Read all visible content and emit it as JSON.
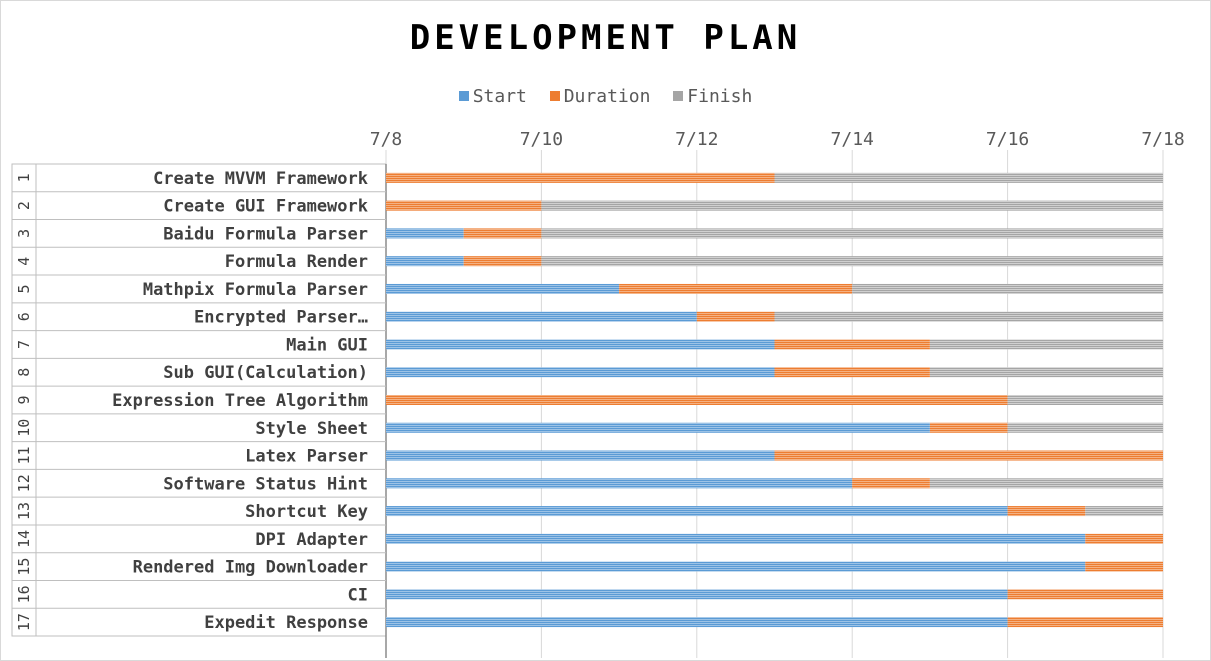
{
  "chart_data": {
    "type": "bar",
    "stacked": true,
    "orientation": "horizontal",
    "title": "DEVELOPMENT PLAN",
    "legend_position": "top",
    "series": [
      {
        "name": "Start",
        "color": "#5b9bd5"
      },
      {
        "name": "Duration",
        "color": "#ed7d31"
      },
      {
        "name": "Finish",
        "color": "#a5a5a5"
      }
    ],
    "x_axis": {
      "min": "7/8",
      "max": "7/18",
      "ticks": [
        "7/8",
        "7/10",
        "7/12",
        "7/14",
        "7/16",
        "7/18"
      ],
      "gridlines": true,
      "position": "top"
    },
    "rows": [
      {
        "index": "1",
        "task": "Create MVVM Framework",
        "start": "7/8",
        "duration_end": "7/13",
        "finish": "7/18"
      },
      {
        "index": "2",
        "task": "Create GUI Framework",
        "start": "7/8",
        "duration_end": "7/10",
        "finish": "7/18"
      },
      {
        "index": "3",
        "task": "Baidu Formula Parser",
        "start": "7/9",
        "duration_end": "7/10",
        "finish": "7/18"
      },
      {
        "index": "4",
        "task": "Formula Render",
        "start": "7/9",
        "duration_end": "7/10",
        "finish": "7/18"
      },
      {
        "index": "5",
        "task": "Mathpix Formula Parser",
        "start": "7/11",
        "duration_end": "7/14",
        "finish": "7/18"
      },
      {
        "index": "6",
        "task": "Encrypted Parser…",
        "start": "7/12",
        "duration_end": "7/13",
        "finish": "7/18"
      },
      {
        "index": "7",
        "task": "Main GUI",
        "start": "7/13",
        "duration_end": "7/15",
        "finish": "7/18"
      },
      {
        "index": "8",
        "task": "Sub GUI(Calculation)",
        "start": "7/13",
        "duration_end": "7/15",
        "finish": "7/18"
      },
      {
        "index": "9",
        "task": "Expression Tree Algorithm",
        "start": "7/8",
        "duration_end": "7/16",
        "finish": "7/18"
      },
      {
        "index": "10",
        "task": "Style Sheet",
        "start": "7/15",
        "duration_end": "7/16",
        "finish": "7/18"
      },
      {
        "index": "11",
        "task": "Latex Parser",
        "start": "7/13",
        "duration_end": "7/18",
        "finish": "7/18"
      },
      {
        "index": "12",
        "task": "Software Status Hint",
        "start": "7/14",
        "duration_end": "7/15",
        "finish": "7/18"
      },
      {
        "index": "13",
        "task": "Shortcut Key",
        "start": "7/16",
        "duration_end": "7/17",
        "finish": "7/18"
      },
      {
        "index": "14",
        "task": "DPI Adapter",
        "start": "7/17",
        "duration_end": "7/18",
        "finish": "7/18"
      },
      {
        "index": "15",
        "task": "Rendered Img Downloader",
        "start": "7/17",
        "duration_end": "7/18",
        "finish": "7/18"
      },
      {
        "index": "16",
        "task": "CI",
        "start": "7/16",
        "duration_end": "7/18",
        "finish": "7/18"
      },
      {
        "index": "17",
        "task": "Expedit Response",
        "start": "7/16",
        "duration_end": "7/18",
        "finish": "7/18"
      }
    ]
  }
}
